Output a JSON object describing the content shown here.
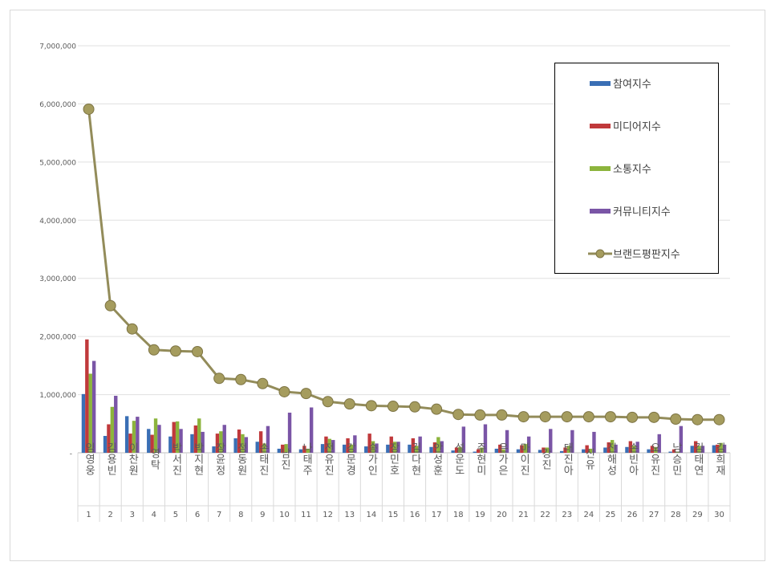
{
  "chart_data": {
    "type": "bar+line",
    "categories": [
      "임영웅",
      "김용빈",
      "이찬원",
      "영탁",
      "박서진",
      "박지현",
      "장윤정",
      "정동원",
      "손태진",
      "남진",
      "나태주",
      "전유진",
      "강문경",
      "송가인",
      "장민호",
      "김다현",
      "안성훈",
      "설운도",
      "주현미",
      "은가은",
      "마이진",
      "강진",
      "태진아",
      "신유",
      "진해성",
      "손빈아",
      "오유진",
      "남승민",
      "김태연",
      "김희재"
    ],
    "ranks": [
      "1",
      "2",
      "3",
      "4",
      "5",
      "6",
      "7",
      "8",
      "9",
      "10",
      "11",
      "12",
      "13",
      "14",
      "15",
      "16",
      "17",
      "18",
      "19",
      "20",
      "21",
      "22",
      "23",
      "24",
      "25",
      "26",
      "27",
      "28",
      "29",
      "30"
    ],
    "ylim": [
      0,
      7000000
    ],
    "yticks": [
      "-",
      "1,000,000",
      "2,000,000",
      "3,000,000",
      "4,000,000",
      "5,000,000",
      "6,000,000",
      "7,000,000"
    ],
    "grid": true,
    "legend_position": "top-right",
    "series": [
      {
        "name": "참여지수",
        "type": "bar",
        "color": "#3a6fb5",
        "values": [
          1010000,
          290000,
          630000,
          410000,
          280000,
          320000,
          110000,
          250000,
          190000,
          70000,
          60000,
          150000,
          140000,
          110000,
          140000,
          140000,
          100000,
          40000,
          20000,
          70000,
          60000,
          50000,
          30000,
          60000,
          90000,
          100000,
          60000,
          20000,
          120000,
          130000
        ]
      },
      {
        "name": "미디어지수",
        "type": "bar",
        "color": "#c0393b",
        "values": [
          1950000,
          490000,
          330000,
          310000,
          530000,
          470000,
          330000,
          400000,
          370000,
          140000,
          120000,
          280000,
          250000,
          330000,
          280000,
          250000,
          180000,
          90000,
          60000,
          140000,
          130000,
          90000,
          90000,
          130000,
          180000,
          200000,
          120000,
          60000,
          200000,
          140000
        ]
      },
      {
        "name": "소통지수",
        "type": "bar",
        "color": "#8cb43c",
        "values": [
          1360000,
          790000,
          550000,
          590000,
          540000,
          590000,
          370000,
          320000,
          160000,
          150000,
          70000,
          240000,
          140000,
          200000,
          190000,
          120000,
          270000,
          100000,
          90000,
          60000,
          150000,
          90000,
          120000,
          70000,
          220000,
          120000,
          100000,
          20000,
          120000,
          170000
        ]
      },
      {
        "name": "커뮤니티지수",
        "type": "bar",
        "color": "#7a55a6",
        "values": [
          1580000,
          980000,
          620000,
          480000,
          410000,
          360000,
          480000,
          270000,
          460000,
          690000,
          780000,
          220000,
          300000,
          160000,
          190000,
          280000,
          200000,
          450000,
          490000,
          390000,
          280000,
          410000,
          390000,
          360000,
          140000,
          190000,
          320000,
          460000,
          120000,
          140000
        ]
      },
      {
        "name": "브랜드평판지수",
        "type": "line",
        "color": "#938c5a",
        "values": [
          5910000,
          2530000,
          2130000,
          1770000,
          1750000,
          1740000,
          1280000,
          1260000,
          1190000,
          1050000,
          1020000,
          880000,
          840000,
          810000,
          800000,
          790000,
          750000,
          660000,
          650000,
          650000,
          620000,
          620000,
          620000,
          620000,
          620000,
          610000,
          610000,
          580000,
          570000,
          570000
        ]
      }
    ]
  }
}
